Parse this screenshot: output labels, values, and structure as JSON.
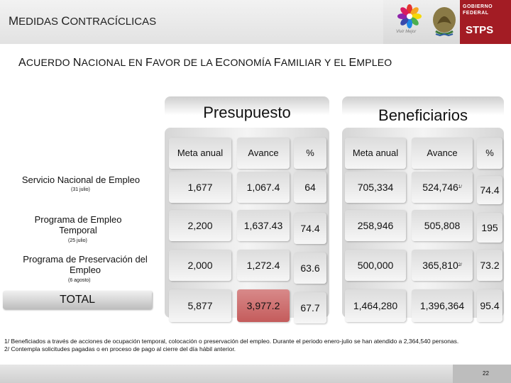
{
  "header": {
    "title_initial_1": "M",
    "title_rest_1": "EDIDAS ",
    "title_initial_2": "C",
    "title_rest_2": "ONTRACÍCLICAS",
    "logo_caption": "Vivir Mejor",
    "gov_line1": "GOBIERNO",
    "gov_line2": "FEDERAL",
    "agency": "STPS",
    "brand_color": "#a31c24"
  },
  "subtitle": {
    "parts": [
      "A",
      "CUERDO ",
      "N",
      "ACIONAL EN ",
      "F",
      "AVOR DE LA ",
      "E",
      "CONOMÍA ",
      "F",
      "AMILIAR Y EL ",
      "E",
      "MPLEO"
    ]
  },
  "groups": {
    "presupuesto": "Presupuesto",
    "beneficiarios": "Beneficiarios"
  },
  "columns": {
    "meta": "Meta anual",
    "avance": "Avance",
    "pct": "%"
  },
  "rows": [
    {
      "label": "Servicio Nacional de Empleo",
      "note": "(31 julio)",
      "p_meta": "1,677",
      "p_avance": "1,067.4",
      "p_pct": "64",
      "b_meta": "705,334",
      "b_avance": "524,746",
      "b_sup": "1/",
      "b_pct": "74.4"
    },
    {
      "label": "Programa de Empleo Temporal",
      "note": "(25 julio)",
      "p_meta": "2,200",
      "p_avance": "1,637.43",
      "p_pct": "74.4",
      "b_meta": "258,946",
      "b_avance": "505,808",
      "b_sup": "",
      "b_pct": "195"
    },
    {
      "label": "Programa de  Preservación del Empleo",
      "note": "(6 agosto)",
      "p_meta": "2,000",
      "p_avance": "1,272.4",
      "p_pct": "63.6",
      "b_meta": "500,000",
      "b_avance": "365,810",
      "b_sup": "2/",
      "b_pct": "73.2"
    },
    {
      "label": "TOTAL",
      "note": "",
      "p_meta": "5,877",
      "p_avance": "3,977.2",
      "p_pct": "67.7",
      "b_meta": "1,464,280",
      "b_avance": "1,396,364",
      "b_sup": "",
      "b_pct": "95.4"
    }
  ],
  "notes": {
    "n1": "1/ Beneficiados a través de acciones de ocupación temporal, colocación o preservación del empleo. Durante el periodo enero-julio se han atendido a 2,364,540 personas.",
    "n2": "2/ Contempla solicitudes pagadas o en proceso de pago al cierre del día hábil anterior."
  },
  "page_number": "22"
}
